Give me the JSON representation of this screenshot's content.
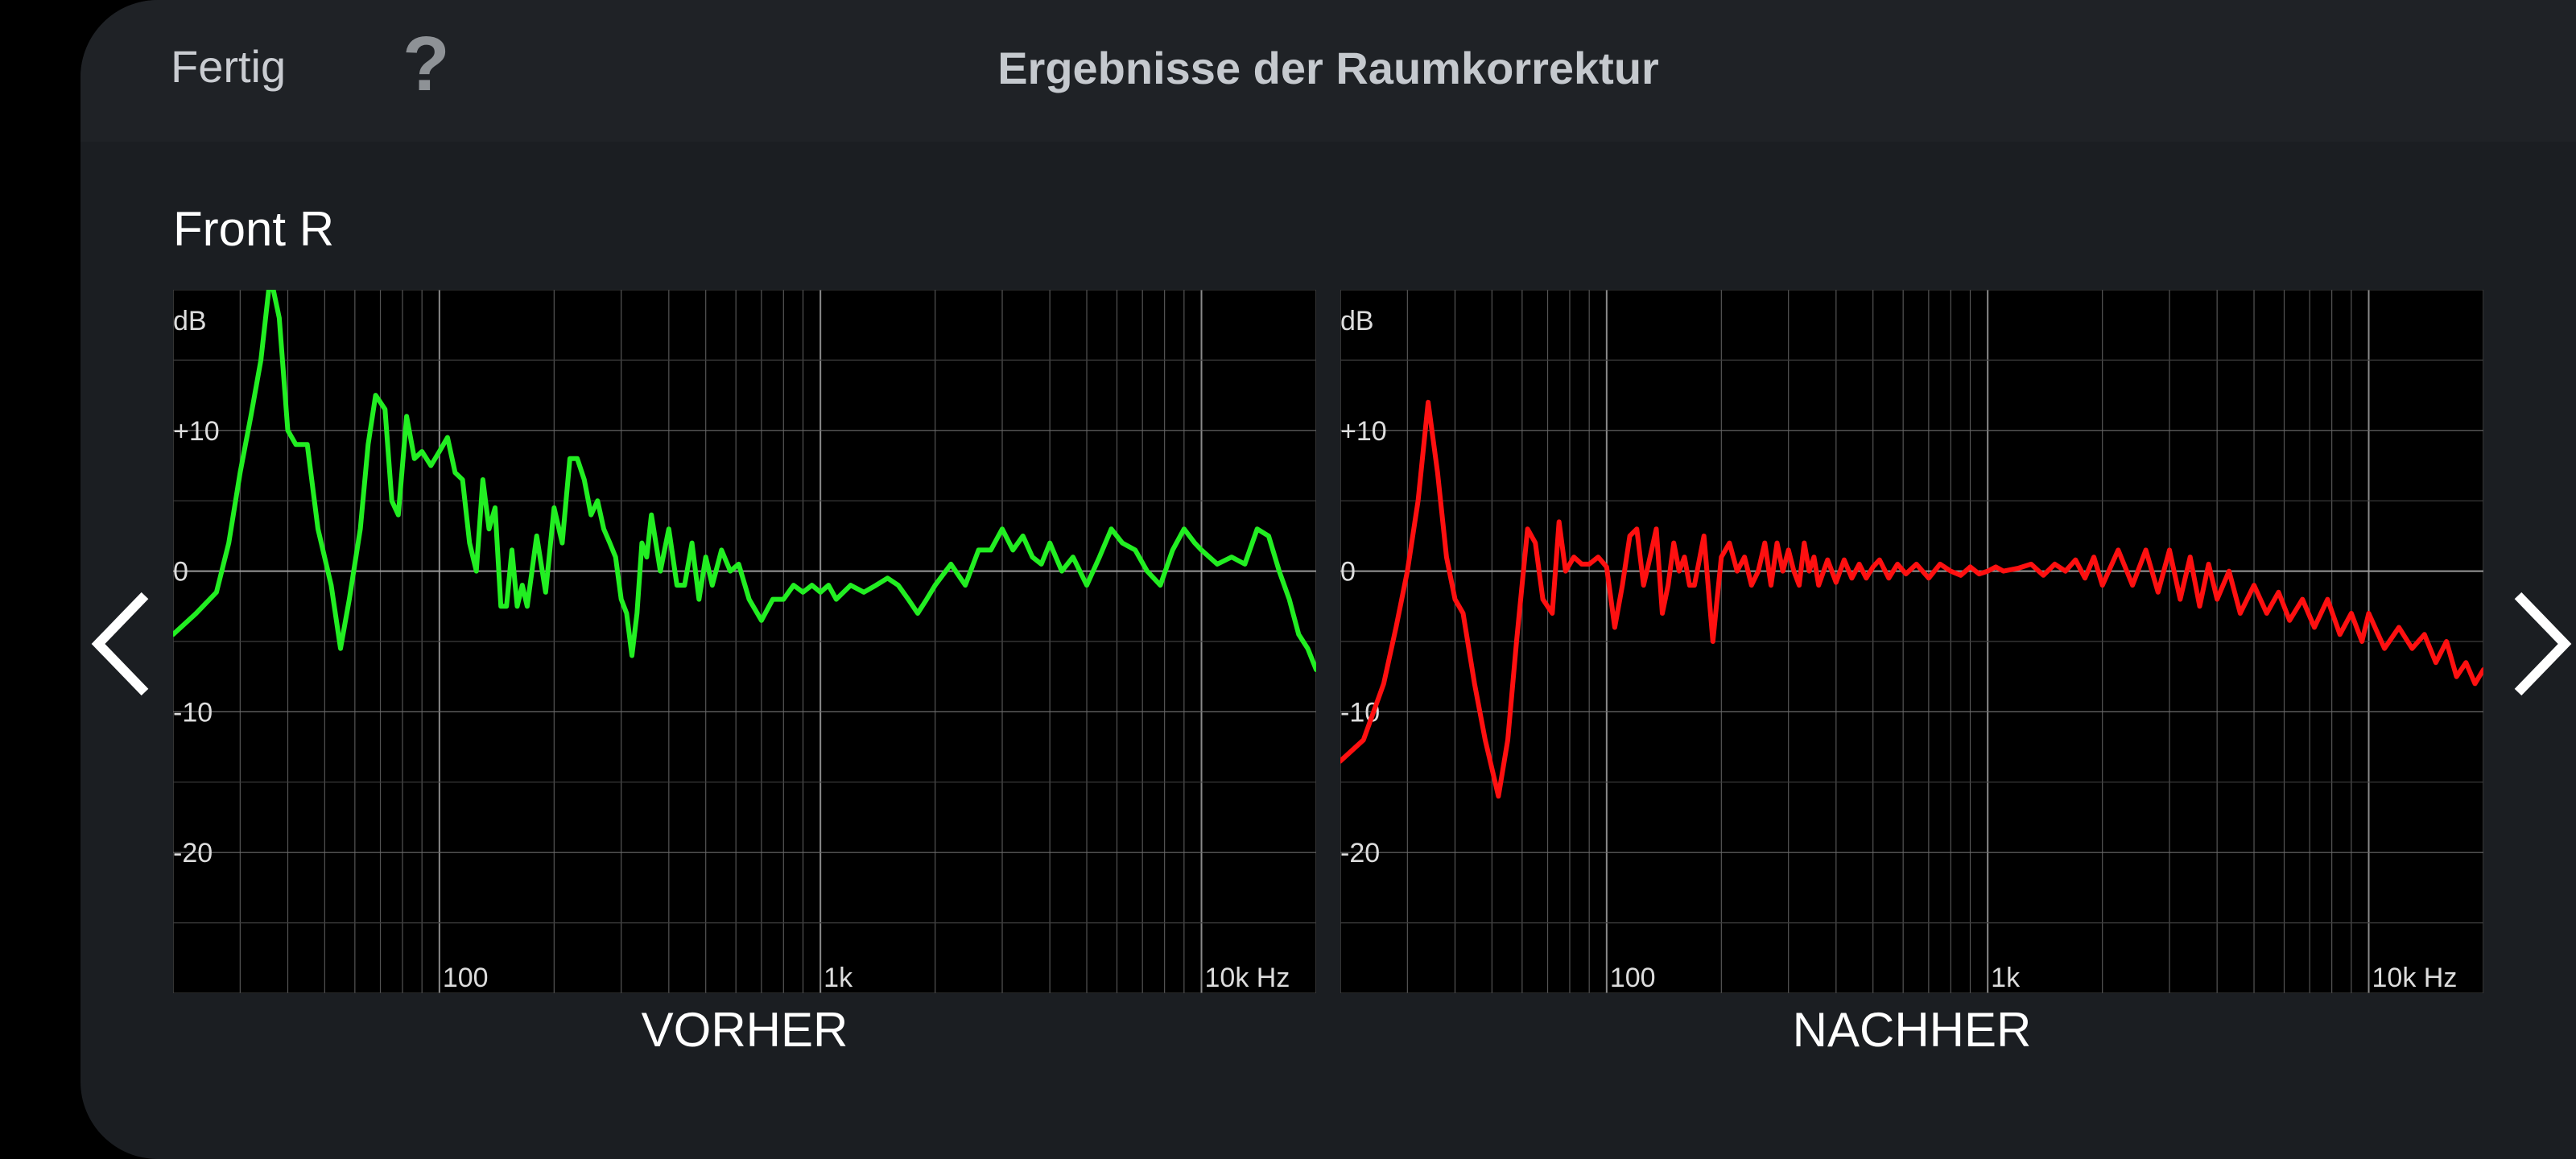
{
  "header": {
    "done_label": "Fertig",
    "help_label": "?",
    "title": "Ergebnisse der Raumkorrektur"
  },
  "channel": "Front R",
  "navigation": {
    "prev_icon": "chevron-left-icon",
    "next_icon": "chevron-right-icon"
  },
  "colors": {
    "before": "#22ee22",
    "after": "#ff1010",
    "grid": "#555555",
    "background": "#000000"
  },
  "chart_data": [
    {
      "type": "line",
      "caption": "VORHER",
      "ylabel": "dB",
      "y_ticks": [
        "+10",
        "0",
        "-10",
        "-20"
      ],
      "x_ticks": [
        "100",
        "1k",
        "10k Hz"
      ],
      "x_scale": "log",
      "xlim": [
        20,
        20000
      ],
      "ylim": [
        -30,
        20
      ],
      "series": [
        {
          "color": "#22ee22",
          "x": [
            20,
            23,
            26,
            28,
            30,
            32,
            34,
            36,
            38,
            40,
            42,
            45,
            48,
            52,
            55,
            58,
            62,
            65,
            68,
            72,
            75,
            78,
            82,
            86,
            90,
            95,
            100,
            105,
            110,
            115,
            120,
            125,
            130,
            135,
            140,
            145,
            150,
            155,
            160,
            165,
            170,
            180,
            190,
            200,
            210,
            220,
            230,
            240,
            250,
            260,
            270,
            280,
            290,
            300,
            310,
            320,
            330,
            340,
            350,
            360,
            380,
            400,
            420,
            440,
            460,
            480,
            500,
            520,
            550,
            580,
            610,
            650,
            700,
            750,
            800,
            850,
            900,
            950,
            1000,
            1050,
            1100,
            1200,
            1300,
            1400,
            1500,
            1600,
            1700,
            1800,
            1900,
            2000,
            2200,
            2400,
            2600,
            2800,
            3000,
            3200,
            3400,
            3600,
            3800,
            4000,
            4300,
            4600,
            5000,
            5400,
            5800,
            6200,
            6700,
            7200,
            7800,
            8400,
            9000,
            9600,
            10000,
            11000,
            12000,
            13000,
            14000,
            15000,
            16000,
            17000,
            18000,
            19000,
            20000
          ],
          "y": [
            -4.5,
            -3,
            -1.5,
            2,
            7,
            11,
            15,
            21,
            18,
            10,
            9,
            9,
            3,
            -1,
            -5.5,
            -2,
            3,
            9,
            12.5,
            11.5,
            5,
            4,
            11,
            8,
            8.5,
            7.5,
            8.5,
            9.5,
            7,
            6.5,
            2,
            0,
            6.5,
            3,
            4.5,
            -2.5,
            -2.5,
            1.5,
            -2.5,
            -1,
            -2.5,
            2.5,
            -1.5,
            4.5,
            2,
            8,
            8,
            6.5,
            4,
            5,
            3,
            2,
            1,
            -2,
            -3,
            -6,
            -3,
            2,
            1,
            4,
            0,
            3,
            -1,
            -1,
            2,
            -2,
            1,
            -1,
            1.5,
            0,
            0.5,
            -2,
            -3.5,
            -2,
            -2,
            -1,
            -1.5,
            -1,
            -1.5,
            -1,
            -2,
            -1,
            -1.5,
            -1,
            -0.5,
            -1,
            -2,
            -3,
            -2,
            -1,
            0.5,
            -1,
            1.5,
            1.5,
            3,
            1.5,
            2.5,
            1,
            0.5,
            2,
            0,
            1,
            -1,
            1,
            3,
            2,
            1.5,
            0,
            -1,
            1.5,
            3,
            2,
            1.5,
            0.5,
            1,
            0.5,
            3,
            2.5,
            0,
            -2,
            -4.5,
            -5.5,
            -7
          ]
        }
      ]
    },
    {
      "type": "line",
      "caption": "NACHHER",
      "ylabel": "dB",
      "y_ticks": [
        "+10",
        "0",
        "-10",
        "-20"
      ],
      "x_ticks": [
        "100",
        "1k",
        "10k Hz"
      ],
      "x_scale": "log",
      "xlim": [
        20,
        20000
      ],
      "ylim": [
        -30,
        20
      ],
      "series": [
        {
          "color": "#ff1010",
          "x": [
            20,
            23,
            26,
            28,
            30,
            32,
            34,
            36,
            38,
            40,
            42,
            45,
            48,
            52,
            55,
            58,
            62,
            65,
            68,
            72,
            75,
            78,
            82,
            86,
            90,
            95,
            100,
            105,
            110,
            115,
            120,
            125,
            130,
            135,
            140,
            145,
            150,
            155,
            160,
            165,
            170,
            180,
            190,
            200,
            210,
            220,
            230,
            240,
            250,
            260,
            270,
            280,
            290,
            300,
            310,
            320,
            330,
            340,
            350,
            360,
            380,
            400,
            420,
            440,
            460,
            480,
            500,
            520,
            550,
            580,
            610,
            650,
            700,
            750,
            800,
            850,
            900,
            950,
            1000,
            1050,
            1100,
            1200,
            1300,
            1400,
            1500,
            1600,
            1700,
            1800,
            1900,
            2000,
            2200,
            2400,
            2600,
            2800,
            3000,
            3200,
            3400,
            3600,
            3800,
            4000,
            4300,
            4600,
            5000,
            5400,
            5800,
            6200,
            6700,
            7200,
            7800,
            8400,
            9000,
            9600,
            10000,
            11000,
            12000,
            13000,
            14000,
            15000,
            16000,
            17000,
            18000,
            19000,
            20000
          ],
          "y": [
            -13.5,
            -12,
            -8,
            -4,
            0,
            5,
            12,
            7,
            1,
            -2,
            -3,
            -8,
            -12,
            -16,
            -12,
            -5,
            3,
            2,
            -2,
            -3,
            3.5,
            0,
            1,
            0.5,
            0.5,
            1,
            0.3,
            -4,
            -1,
            2.5,
            3,
            -1,
            1,
            3,
            -3,
            -1,
            2,
            0,
            1,
            -1,
            -1,
            2.5,
            -5,
            1,
            2,
            0,
            1,
            -1,
            0,
            2,
            -1,
            2,
            0,
            1.5,
            0,
            -1,
            2,
            0,
            1,
            -1,
            0.8,
            -0.8,
            0.8,
            -0.5,
            0.5,
            -0.5,
            0.3,
            0.8,
            -0.5,
            0.5,
            -0.2,
            0.5,
            -0.5,
            0.5,
            0,
            -0.3,
            0.3,
            -0.2,
            0,
            0.3,
            0,
            0.2,
            0.5,
            -0.3,
            0.5,
            0,
            0.8,
            -0.5,
            1,
            -1,
            1.5,
            -1,
            1.5,
            -1.5,
            1.5,
            -2,
            1,
            -2.5,
            0.5,
            -2,
            0,
            -3,
            -1,
            -3,
            -1.5,
            -3.5,
            -2,
            -4,
            -2,
            -4.5,
            -3,
            -5,
            -3,
            -5.5,
            -4,
            -5.5,
            -4.5,
            -6.5,
            -5,
            -7.5,
            -6.5,
            -8,
            -7
          ]
        }
      ]
    }
  ]
}
